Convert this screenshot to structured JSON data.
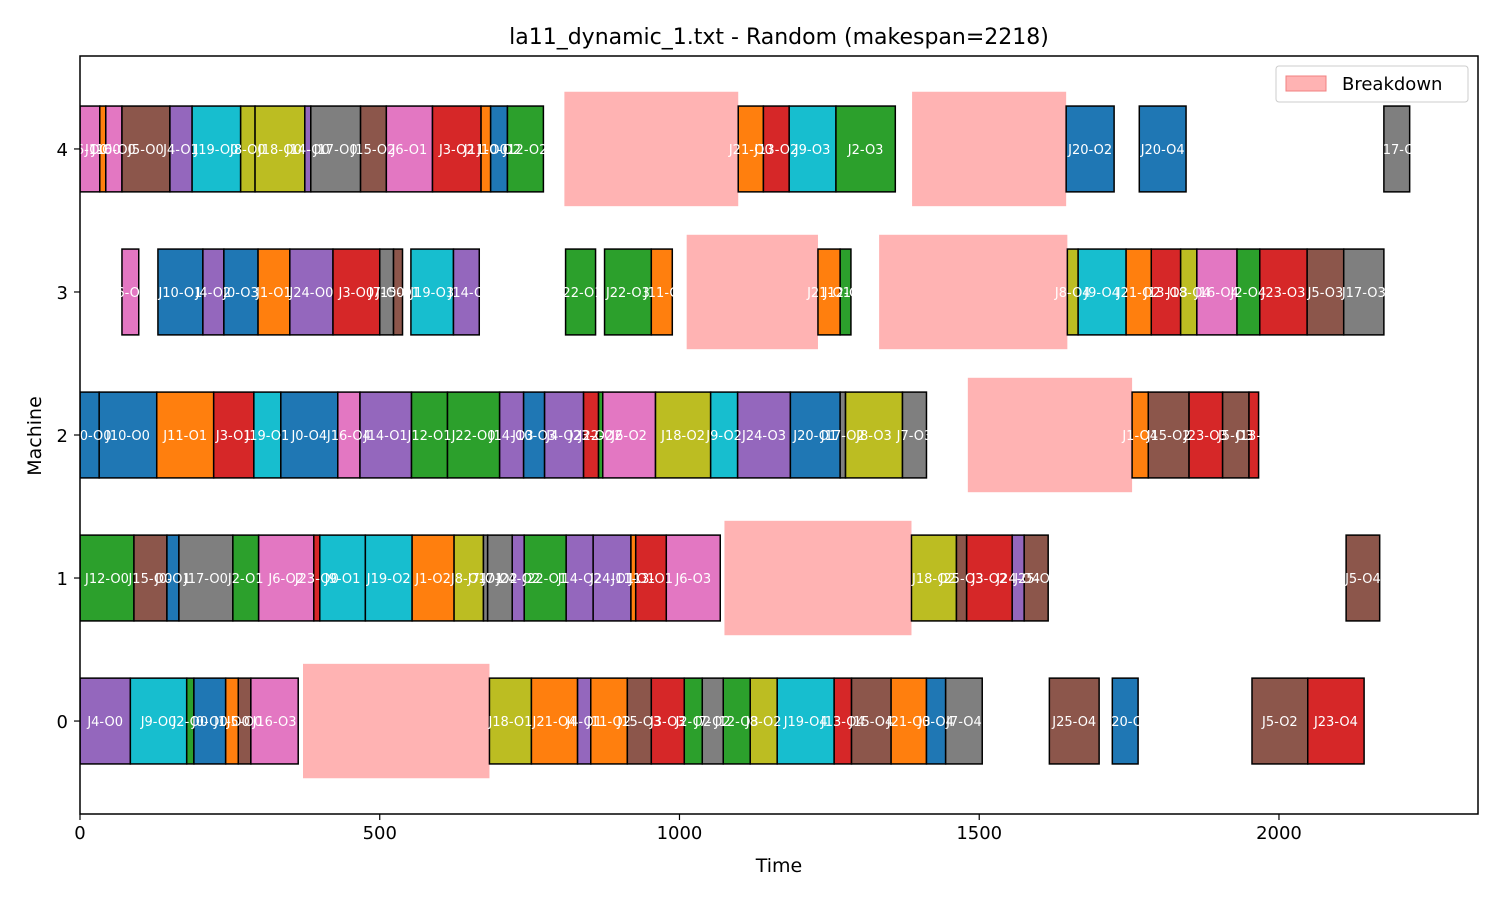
{
  "chart_data": {
    "type": "gantt",
    "title": "la11_dynamic_1.txt - Random (makespan=2218)",
    "xlabel": "Time",
    "ylabel": "Machine",
    "xlim": [
      0,
      2332
    ],
    "ylim": [
      -0.65,
      4.65
    ],
    "xticks": [
      0,
      500,
      1000,
      1500,
      2000
    ],
    "yticks": [
      0,
      1,
      2,
      3,
      4
    ],
    "legend": {
      "position": "top-right",
      "entries": [
        {
          "label": "Breakdown",
          "color": "#ffb3b3"
        }
      ]
    },
    "job_colors": {
      "J0": "#1f77b4",
      "J1": "#ff7f0e",
      "J2": "#2ca02c",
      "J3": "#d62728",
      "J4": "#9467bd",
      "J5": "#8c564b",
      "J6": "#e377c2",
      "J7": "#7f7f7f",
      "J8": "#bcbd22",
      "J9": "#17becf",
      "J10": "#1f77b4",
      "J11": "#ff7f0e",
      "J12": "#2ca02c",
      "J13": "#d62728",
      "J14": "#9467bd",
      "J15": "#8c564b",
      "J16": "#e377c2",
      "J17": "#7f7f7f",
      "J18": "#bcbd22",
      "J19": "#17becf",
      "J20": "#1f77b4",
      "J21": "#ff7f0e",
      "J22": "#2ca02c",
      "J23": "#d62728",
      "J24": "#9467bd",
      "J25": "#8c564b"
    },
    "breakdowns": [
      {
        "machine": 0,
        "start": 372,
        "end": 683
      },
      {
        "machine": 1,
        "start": 1075,
        "end": 1387
      },
      {
        "machine": 2,
        "start": 1481,
        "end": 1755
      },
      {
        "machine": 3,
        "start": 1012,
        "end": 1231
      },
      {
        "machine": 3,
        "start": 1333,
        "end": 1647
      },
      {
        "machine": 4,
        "start": 808,
        "end": 1098
      },
      {
        "machine": 4,
        "start": 1388,
        "end": 1645
      }
    ],
    "operations": [
      {
        "machine": 0,
        "start": 0,
        "end": 84,
        "job": "J4",
        "label": "J4-O0"
      },
      {
        "machine": 0,
        "start": 84,
        "end": 178,
        "job": "J9",
        "label": "J9-O0"
      },
      {
        "machine": 0,
        "start": 178,
        "end": 190,
        "job": "J2",
        "label": "J2-O0"
      },
      {
        "machine": 0,
        "start": 190,
        "end": 243,
        "job": "J0",
        "label": "J0-O0"
      },
      {
        "machine": 0,
        "start": 243,
        "end": 264,
        "job": "J1",
        "label": "J1-O0"
      },
      {
        "machine": 0,
        "start": 264,
        "end": 285,
        "job": "J5",
        "label": "J5-O0"
      },
      {
        "machine": 0,
        "start": 285,
        "end": 364,
        "job": "J16",
        "label": "J16-O3"
      },
      {
        "machine": 0,
        "start": 683,
        "end": 753,
        "job": "J18",
        "label": "J18-O1"
      },
      {
        "machine": 0,
        "start": 753,
        "end": 830,
        "job": "J21",
        "label": "J21-O4"
      },
      {
        "machine": 0,
        "start": 830,
        "end": 852,
        "job": "J4",
        "label": "J4-O1"
      },
      {
        "machine": 0,
        "start": 852,
        "end": 913,
        "job": "J11",
        "label": "J11-O2"
      },
      {
        "machine": 0,
        "start": 913,
        "end": 953,
        "job": "J15",
        "label": "J15-O3"
      },
      {
        "machine": 0,
        "start": 953,
        "end": 1008,
        "job": "J3",
        "label": "J3-O3"
      },
      {
        "machine": 0,
        "start": 1008,
        "end": 1038,
        "job": "J2",
        "label": "J2-O2"
      },
      {
        "machine": 0,
        "start": 1038,
        "end": 1073,
        "job": "J7",
        "label": "J7-O2"
      },
      {
        "machine": 0,
        "start": 1073,
        "end": 1118,
        "job": "J12",
        "label": "J12-O3"
      },
      {
        "machine": 0,
        "start": 1118,
        "end": 1163,
        "job": "J8",
        "label": "J8-O2"
      },
      {
        "machine": 0,
        "start": 1163,
        "end": 1258,
        "job": "J19",
        "label": "J19-O4"
      },
      {
        "machine": 0,
        "start": 1258,
        "end": 1287,
        "job": "J13",
        "label": "J13-O4"
      },
      {
        "machine": 0,
        "start": 1287,
        "end": 1353,
        "job": "J15",
        "label": "J15-O4"
      },
      {
        "machine": 0,
        "start": 1353,
        "end": 1412,
        "job": "J21",
        "label": "J21-O3"
      },
      {
        "machine": 0,
        "start": 1412,
        "end": 1444,
        "job": "J0",
        "label": "J0-O4"
      },
      {
        "machine": 0,
        "start": 1444,
        "end": 1505,
        "job": "J7",
        "label": "J7-O4"
      },
      {
        "machine": 0,
        "start": 1617,
        "end": 1700,
        "job": "J25",
        "label": "J25-O4"
      },
      {
        "machine": 0,
        "start": 1722,
        "end": 1765,
        "job": "J20",
        "label": "J20-O"
      },
      {
        "machine": 0,
        "start": 1955,
        "end": 2048,
        "job": "J5",
        "label": "J5-O2"
      },
      {
        "machine": 0,
        "start": 2048,
        "end": 2142,
        "job": "J23",
        "label": "J23-O4"
      },
      {
        "machine": 1,
        "start": 0,
        "end": 90,
        "job": "J12",
        "label": "J12-O0"
      },
      {
        "machine": 1,
        "start": 90,
        "end": 145,
        "job": "J15",
        "label": "J15-O0"
      },
      {
        "machine": 1,
        "start": 145,
        "end": 165,
        "job": "J0",
        "label": "J0-O1"
      },
      {
        "machine": 1,
        "start": 165,
        "end": 255,
        "job": "J17",
        "label": "J17-O0"
      },
      {
        "machine": 1,
        "start": 255,
        "end": 298,
        "job": "J2",
        "label": "J2-O1"
      },
      {
        "machine": 1,
        "start": 298,
        "end": 390,
        "job": "J6",
        "label": "J6-O2"
      },
      {
        "machine": 1,
        "start": 390,
        "end": 400,
        "job": "J23",
        "label": "J23-O0"
      },
      {
        "machine": 1,
        "start": 400,
        "end": 476,
        "job": "J9",
        "label": "J9-O1"
      },
      {
        "machine": 1,
        "start": 476,
        "end": 554,
        "job": "J19",
        "label": "J19-O2"
      },
      {
        "machine": 1,
        "start": 554,
        "end": 624,
        "job": "J1",
        "label": "J1-O2"
      },
      {
        "machine": 1,
        "start": 624,
        "end": 673,
        "job": "J8",
        "label": "J8-O1"
      },
      {
        "machine": 1,
        "start": 673,
        "end": 680,
        "job": "J7",
        "label": "J7-O1"
      },
      {
        "machine": 1,
        "start": 680,
        "end": 721,
        "job": "J7",
        "label": "J7-O2"
      },
      {
        "machine": 1,
        "start": 721,
        "end": 741,
        "job": "J24",
        "label": "J24-O2"
      },
      {
        "machine": 1,
        "start": 741,
        "end": 811,
        "job": "J22",
        "label": "J22-O1"
      },
      {
        "machine": 1,
        "start": 811,
        "end": 856,
        "job": "J14",
        "label": "J14-O2"
      },
      {
        "machine": 1,
        "start": 856,
        "end": 919,
        "job": "J24",
        "label": "J24-O1"
      },
      {
        "machine": 1,
        "start": 919,
        "end": 927,
        "job": "J11",
        "label": "J11-O1"
      },
      {
        "machine": 1,
        "start": 927,
        "end": 978,
        "job": "J13",
        "label": "J13-O1"
      },
      {
        "machine": 1,
        "start": 978,
        "end": 1068,
        "job": "J6",
        "label": "J6-O3"
      },
      {
        "machine": 1,
        "start": 1387,
        "end": 1462,
        "job": "J18",
        "label": "J18-O2"
      },
      {
        "machine": 1,
        "start": 1462,
        "end": 1479,
        "job": "J25",
        "label": "J25-O3"
      },
      {
        "machine": 1,
        "start": 1479,
        "end": 1555,
        "job": "J3",
        "label": "J3-O2"
      },
      {
        "machine": 1,
        "start": 1555,
        "end": 1575,
        "job": "J24",
        "label": "J24-O4"
      },
      {
        "machine": 1,
        "start": 1575,
        "end": 1615,
        "job": "J25",
        "label": "J25-O4"
      },
      {
        "machine": 1,
        "start": 2112,
        "end": 2168,
        "job": "J5",
        "label": "J5-O4"
      },
      {
        "machine": 2,
        "start": 0,
        "end": 32,
        "job": "J20",
        "label": "J20-O0"
      },
      {
        "machine": 2,
        "start": 32,
        "end": 128,
        "job": "J10",
        "label": "J10-O0"
      },
      {
        "machine": 2,
        "start": 128,
        "end": 223,
        "job": "J11",
        "label": "J11-O1"
      },
      {
        "machine": 2,
        "start": 223,
        "end": 290,
        "job": "J3",
        "label": "J3-O1"
      },
      {
        "machine": 2,
        "start": 290,
        "end": 335,
        "job": "J19",
        "label": "J19-O1"
      },
      {
        "machine": 2,
        "start": 335,
        "end": 430,
        "job": "J0",
        "label": "J0-O4"
      },
      {
        "machine": 2,
        "start": 430,
        "end": 467,
        "job": "J16",
        "label": "J16-O4"
      },
      {
        "machine": 2,
        "start": 467,
        "end": 553,
        "job": "J14",
        "label": "J14-O1"
      },
      {
        "machine": 2,
        "start": 553,
        "end": 613,
        "job": "J12",
        "label": "J12-O1"
      },
      {
        "machine": 2,
        "start": 613,
        "end": 700,
        "job": "J22",
        "label": "J22-O0"
      },
      {
        "machine": 2,
        "start": 700,
        "end": 740,
        "job": "J14",
        "label": "J14-O3"
      },
      {
        "machine": 2,
        "start": 740,
        "end": 775,
        "job": "J10",
        "label": "J10-O3"
      },
      {
        "machine": 2,
        "start": 775,
        "end": 840,
        "job": "J4",
        "label": "J4-O2"
      },
      {
        "machine": 2,
        "start": 840,
        "end": 865,
        "job": "J23",
        "label": "J23-O2"
      },
      {
        "machine": 2,
        "start": 865,
        "end": 872,
        "job": "J22",
        "label": "J22-O2"
      },
      {
        "machine": 2,
        "start": 872,
        "end": 960,
        "job": "J6",
        "label": "J6-O2"
      },
      {
        "machine": 2,
        "start": 960,
        "end": 1052,
        "job": "J18",
        "label": "J18-O2"
      },
      {
        "machine": 2,
        "start": 1052,
        "end": 1097,
        "job": "J9",
        "label": "J9-O2"
      },
      {
        "machine": 2,
        "start": 1097,
        "end": 1185,
        "job": "J24",
        "label": "J24-O3"
      },
      {
        "machine": 2,
        "start": 1185,
        "end": 1268,
        "job": "J20",
        "label": "J20-O1"
      },
      {
        "machine": 2,
        "start": 1268,
        "end": 1277,
        "job": "J17",
        "label": "J17-O2"
      },
      {
        "machine": 2,
        "start": 1277,
        "end": 1372,
        "job": "J8",
        "label": "J8-O3"
      },
      {
        "machine": 2,
        "start": 1372,
        "end": 1412,
        "job": "J7",
        "label": "J7-O3"
      },
      {
        "machine": 2,
        "start": 1755,
        "end": 1782,
        "job": "J1",
        "label": "J1-O4"
      },
      {
        "machine": 2,
        "start": 1782,
        "end": 1850,
        "job": "J15",
        "label": "J15-O2"
      },
      {
        "machine": 2,
        "start": 1850,
        "end": 1906,
        "job": "J23",
        "label": "J23-O3"
      },
      {
        "machine": 2,
        "start": 1906,
        "end": 1950,
        "job": "J5",
        "label": "J5-O3"
      },
      {
        "machine": 2,
        "start": 1950,
        "end": 1966,
        "job": "J13",
        "label": "J13-O"
      },
      {
        "machine": 3,
        "start": 70,
        "end": 98,
        "job": "J6",
        "label": "J6-O1"
      },
      {
        "machine": 3,
        "start": 130,
        "end": 205,
        "job": "J10",
        "label": "J10-O1"
      },
      {
        "machine": 3,
        "start": 205,
        "end": 240,
        "job": "J4",
        "label": "J4-O2"
      },
      {
        "machine": 3,
        "start": 240,
        "end": 297,
        "job": "J0",
        "label": "J0-O3"
      },
      {
        "machine": 3,
        "start": 297,
        "end": 350,
        "job": "J1",
        "label": "J1-O1"
      },
      {
        "machine": 3,
        "start": 350,
        "end": 422,
        "job": "J24",
        "label": "J24-O0"
      },
      {
        "machine": 3,
        "start": 422,
        "end": 500,
        "job": "J3",
        "label": "J3-O0"
      },
      {
        "machine": 3,
        "start": 500,
        "end": 523,
        "job": "J7",
        "label": "J7-O0"
      },
      {
        "machine": 3,
        "start": 523,
        "end": 538,
        "job": "J15",
        "label": "J15-O1"
      },
      {
        "machine": 3,
        "start": 552,
        "end": 623,
        "job": "J19",
        "label": "J19-O3"
      },
      {
        "machine": 3,
        "start": 623,
        "end": 666,
        "job": "J14",
        "label": "J14-O"
      },
      {
        "machine": 3,
        "start": 810,
        "end": 860,
        "job": "J22",
        "label": "J22-O1"
      },
      {
        "machine": 3,
        "start": 875,
        "end": 953,
        "job": "J22",
        "label": "J22-O3"
      },
      {
        "machine": 3,
        "start": 953,
        "end": 988,
        "job": "J11",
        "label": "J11-O"
      },
      {
        "machine": 3,
        "start": 1231,
        "end": 1268,
        "job": "J21",
        "label": "J21-O1"
      },
      {
        "machine": 3,
        "start": 1268,
        "end": 1286,
        "job": "J12",
        "label": "J12-O2"
      },
      {
        "machine": 3,
        "start": 1647,
        "end": 1665,
        "job": "J8",
        "label": "J8-O4"
      },
      {
        "machine": 3,
        "start": 1665,
        "end": 1745,
        "job": "J9",
        "label": "J9-O4"
      },
      {
        "machine": 3,
        "start": 1745,
        "end": 1787,
        "job": "J21",
        "label": "J21-O2"
      },
      {
        "machine": 3,
        "start": 1787,
        "end": 1836,
        "job": "J13",
        "label": "J13-O3"
      },
      {
        "machine": 3,
        "start": 1836,
        "end": 1863,
        "job": "J18",
        "label": "J18-O4"
      },
      {
        "machine": 3,
        "start": 1863,
        "end": 1930,
        "job": "J16",
        "label": "J16-O4"
      },
      {
        "machine": 3,
        "start": 1930,
        "end": 1968,
        "job": "J2",
        "label": "J2-O4"
      },
      {
        "machine": 3,
        "start": 1968,
        "end": 2047,
        "job": "J23",
        "label": "J23-O3"
      },
      {
        "machine": 3,
        "start": 2047,
        "end": 2108,
        "job": "J5",
        "label": "J5-O3"
      },
      {
        "machine": 3,
        "start": 2108,
        "end": 2175,
        "job": "J17",
        "label": "J17-O3"
      },
      {
        "machine": 4,
        "start": 0,
        "end": 33,
        "job": "J6",
        "label": "J6-O0"
      },
      {
        "machine": 4,
        "start": 33,
        "end": 43,
        "job": "J1",
        "label": "J1-O0"
      },
      {
        "machine": 4,
        "start": 43,
        "end": 70,
        "job": "J16",
        "label": "J16-O0"
      },
      {
        "machine": 4,
        "start": 70,
        "end": 150,
        "job": "J5",
        "label": "J5-O0"
      },
      {
        "machine": 4,
        "start": 150,
        "end": 187,
        "job": "J4",
        "label": "J4-O1"
      },
      {
        "machine": 4,
        "start": 187,
        "end": 268,
        "job": "J19",
        "label": "J19-O0"
      },
      {
        "machine": 4,
        "start": 268,
        "end": 292,
        "job": "J8",
        "label": "J8-O0"
      },
      {
        "machine": 4,
        "start": 292,
        "end": 375,
        "job": "J18",
        "label": "J18-O0"
      },
      {
        "machine": 4,
        "start": 375,
        "end": 385,
        "job": "J14",
        "label": "J14-O0"
      },
      {
        "machine": 4,
        "start": 385,
        "end": 468,
        "job": "J17",
        "label": "J17-O0"
      },
      {
        "machine": 4,
        "start": 468,
        "end": 511,
        "job": "J15",
        "label": "J15-O2"
      },
      {
        "machine": 4,
        "start": 511,
        "end": 588,
        "job": "J6",
        "label": "J6-O1"
      },
      {
        "machine": 4,
        "start": 588,
        "end": 669,
        "job": "J3",
        "label": "J3-O2"
      },
      {
        "machine": 4,
        "start": 669,
        "end": 685,
        "job": "J11",
        "label": "J11-O0"
      },
      {
        "machine": 4,
        "start": 685,
        "end": 713,
        "job": "J10",
        "label": "J10-O2"
      },
      {
        "machine": 4,
        "start": 713,
        "end": 773,
        "job": "J12",
        "label": "J12-O2"
      },
      {
        "machine": 4,
        "start": 1098,
        "end": 1140,
        "job": "J21",
        "label": "J21-O0"
      },
      {
        "machine": 4,
        "start": 1140,
        "end": 1183,
        "job": "J13",
        "label": "J13-O2"
      },
      {
        "machine": 4,
        "start": 1183,
        "end": 1261,
        "job": "J9",
        "label": "J9-O3"
      },
      {
        "machine": 4,
        "start": 1261,
        "end": 1360,
        "job": "J2",
        "label": "J2-O3"
      },
      {
        "machine": 4,
        "start": 1645,
        "end": 1725,
        "job": "J20",
        "label": "J20-O2"
      },
      {
        "machine": 4,
        "start": 1767,
        "end": 1845,
        "job": "J20",
        "label": "J20-O4"
      },
      {
        "machine": 4,
        "start": 2175,
        "end": 2218,
        "job": "J17",
        "label": "J17-O"
      }
    ]
  }
}
